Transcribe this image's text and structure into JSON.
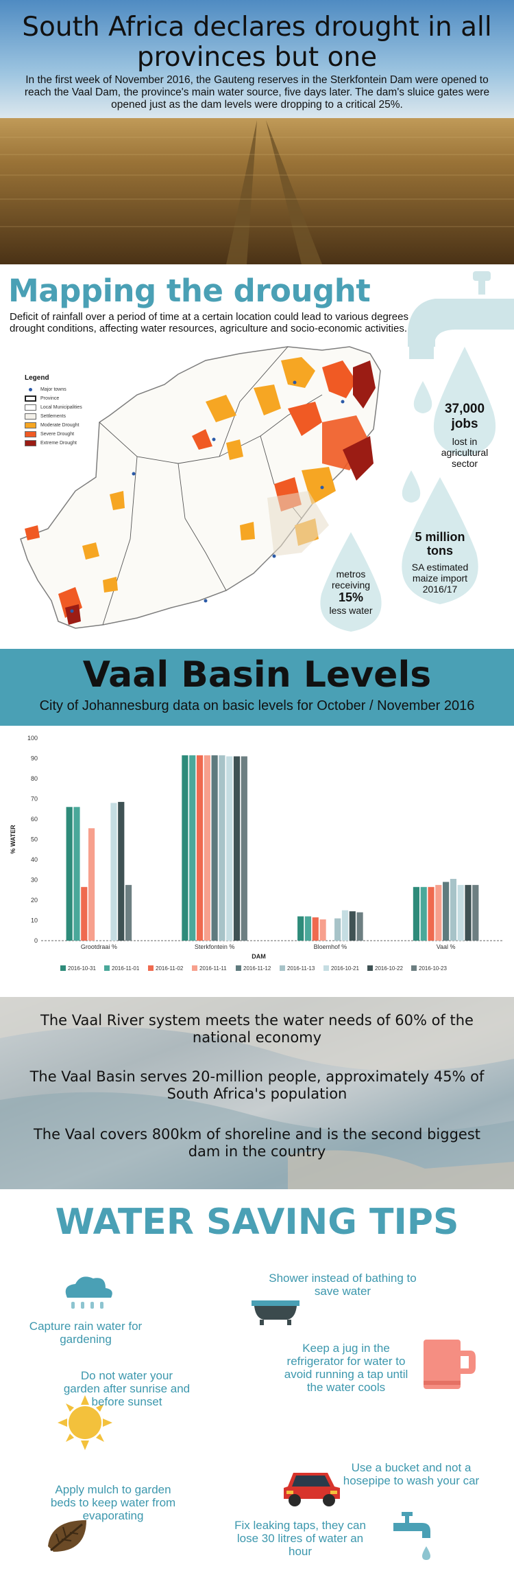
{
  "hero": {
    "title": "South Africa declares drought in all provinces but one",
    "text": "In the first week of November 2016, the Gauteng reserves in the Sterkfontein Dam were opened to reach the Vaal Dam, the province's main water source, five days later. The dam's sluice gates were opened just as the dam levels were dropping to a critical 25%."
  },
  "mapping": {
    "title": "Mapping the drought",
    "text": "Deficit of rainfall over a period of time at a certain location could lead to various degrees of drought conditions, affecting water resources, agriculture and socio-economic activities.",
    "legend_title": "Legend",
    "legend": [
      {
        "label": "Major towns",
        "color": "#2b5aa8",
        "kind": "dot"
      },
      {
        "label": "Province",
        "color": "#ffffff",
        "kind": "box-thick"
      },
      {
        "label": "Local Municipalities",
        "color": "#ffffff",
        "kind": "box"
      },
      {
        "label": "Settlements",
        "color": "#f4f1ea",
        "kind": "box"
      },
      {
        "label": "Moderate Drought",
        "color": "#f6a623",
        "kind": "box"
      },
      {
        "label": "Severe Drought",
        "color": "#f05a24",
        "kind": "box"
      },
      {
        "label": "Extreme Drought",
        "color": "#9b1c14",
        "kind": "box"
      }
    ],
    "stats": [
      {
        "big": "37,000",
        "mid": "jobs",
        "small": "lost in agricultural sector"
      },
      {
        "big": "5 million",
        "mid": "tons",
        "small": "SA estimated maize import 2016/17"
      },
      {
        "pre": "metros receiving",
        "big": "15%",
        "small": "less water"
      }
    ]
  },
  "vaal": {
    "title": "Vaal Basin Levels",
    "subtitle": "City of Johannesburg data on basic levels for October / November 2016"
  },
  "chart_data": {
    "type": "bar",
    "xlabel": "DAM",
    "ylabel": "% WATER",
    "ylim": [
      0,
      100
    ],
    "yticks": [
      0,
      10,
      20,
      30,
      40,
      50,
      60,
      70,
      80,
      90,
      100
    ],
    "categories": [
      "Grootdraai %",
      "Sterkfontein %",
      "Bloemhof %",
      "Vaal %"
    ],
    "series": [
      {
        "name": "2016-10-31",
        "color": "#2e8b7a",
        "values": [
          66,
          91.5,
          12,
          26.5
        ]
      },
      {
        "name": "2016-11-01",
        "color": "#4aa89a",
        "values": [
          66,
          91.5,
          12,
          26.5
        ]
      },
      {
        "name": "2016-11-02",
        "color": "#ef6a4f",
        "values": [
          26.5,
          91.5,
          11.5,
          26.5
        ]
      },
      {
        "name": "2016-11-11",
        "color": "#f7a08d",
        "values": [
          55.5,
          91.5,
          10.5,
          27.5
        ]
      },
      {
        "name": "2016-11-12",
        "color": "#5f7b7e",
        "values": [
          null,
          91.5,
          null,
          29
        ]
      },
      {
        "name": "2016-11-13",
        "color": "#a7c3c8",
        "values": [
          null,
          91.5,
          11,
          30.5
        ]
      },
      {
        "name": "2016-10-21",
        "color": "#c5dde2",
        "values": [
          68,
          91,
          15,
          27.5
        ]
      },
      {
        "name": "2016-10-22",
        "color": "#3f5254",
        "values": [
          68.5,
          91,
          14.5,
          27.5
        ]
      },
      {
        "name": "2016-10-23",
        "color": "#6d7f82",
        "values": [
          27.5,
          91,
          14,
          27.5
        ]
      }
    ]
  },
  "facts": [
    "The Vaal River system meets the water needs of 60% of the national economy",
    "The Vaal Basin serves 20-million people, approximately 45% of South Africa's population",
    "The Vaal covers 800km of shoreline and is the second biggest dam in the country"
  ],
  "tips": {
    "title": "WATER SAVING TIPS",
    "items": [
      "Capture rain water for gardening",
      "Shower instead of bathing to save water",
      "Keep a jug in the refrigerator for water to avoid running a tap until the water cools",
      "Do not water your garden after sunrise and before sunset",
      "Use a bucket and not a hosepipe to wash your car",
      "Apply mulch to garden beds to keep water from evaporating",
      "Fix leaking taps, they can lose 30 litres of water an hour"
    ]
  }
}
